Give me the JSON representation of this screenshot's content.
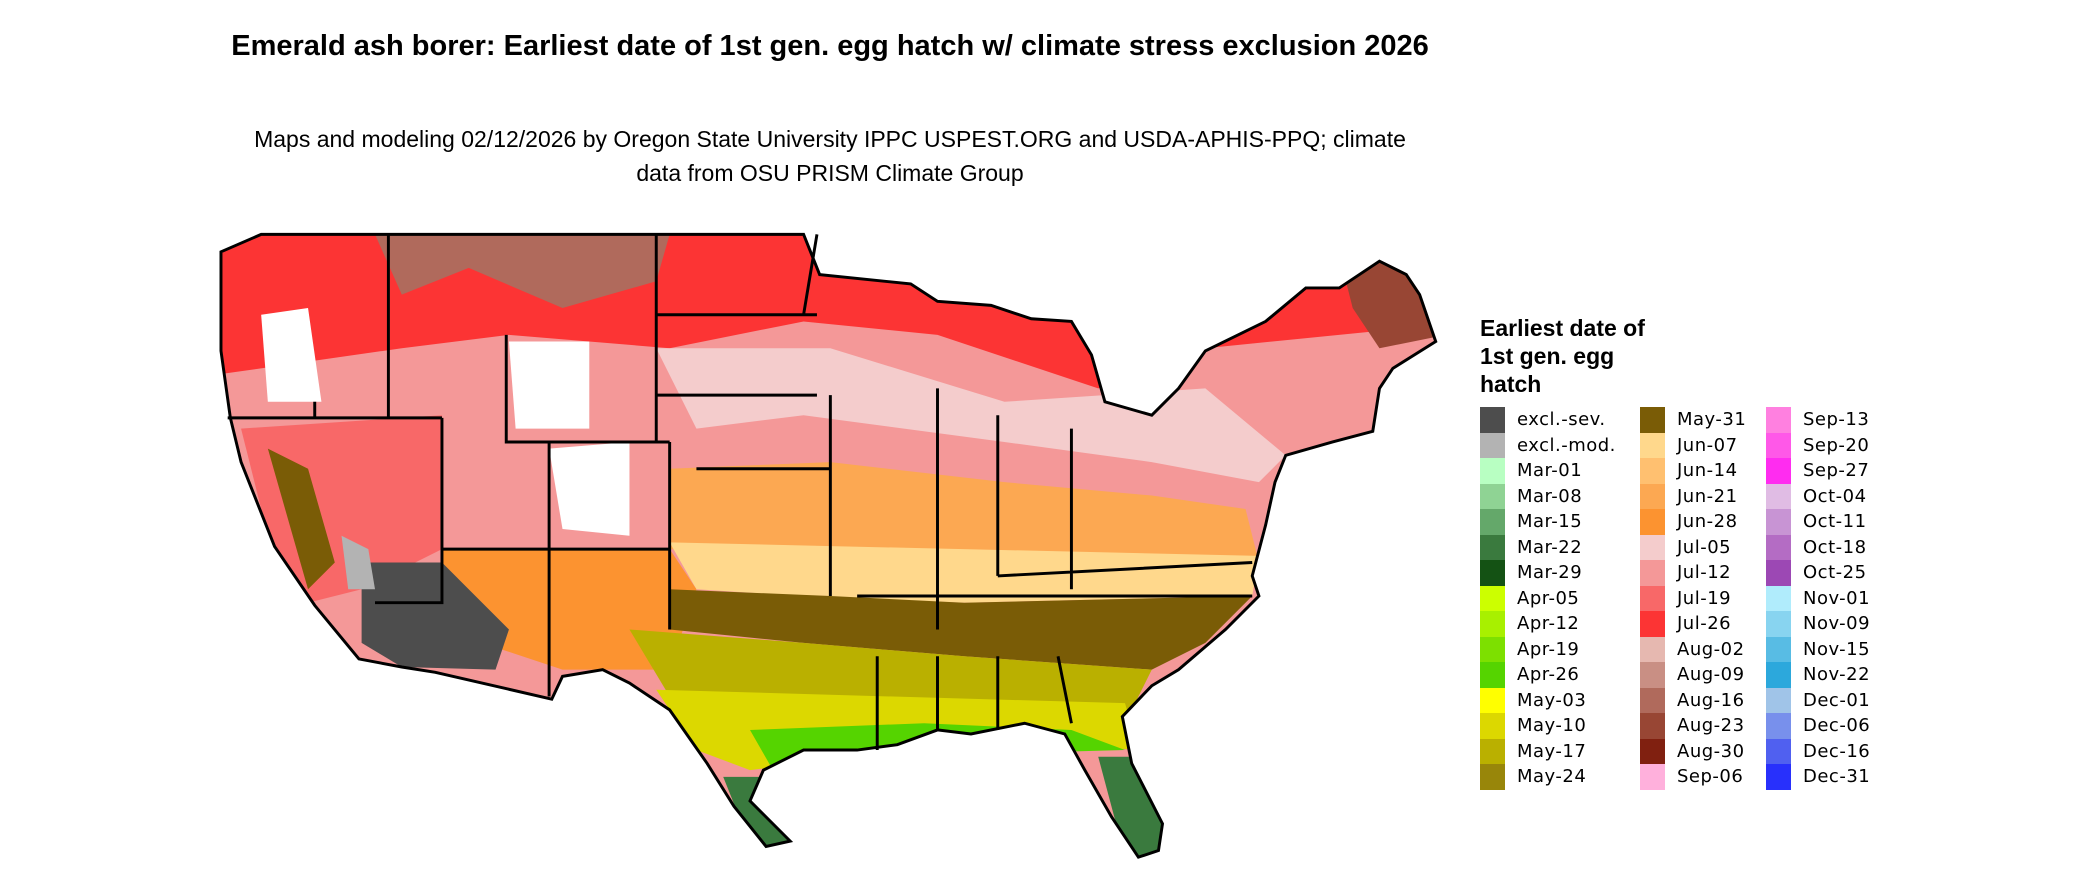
{
  "title": "Emerald ash borer: Earliest date of 1st gen. egg hatch w/ climate stress exclusion 2026",
  "subtitle": "Maps and modeling 02/12/2026 by Oregon State University IPPC USPEST.ORG and USDA-APHIS-PPQ; climate data from OSU PRISM Climate Group",
  "legend": {
    "title": "Earliest date of 1st gen. egg hatch",
    "columns": [
      [
        {
          "label": "excl.-sev.",
          "color": "#4d4d4d"
        },
        {
          "label": "excl.-mod.",
          "color": "#b3b3b3"
        },
        {
          "label": "Mar-01",
          "color": "#b8ffc2"
        },
        {
          "label": "Mar-08",
          "color": "#8fd394"
        },
        {
          "label": "Mar-15",
          "color": "#64a86a"
        },
        {
          "label": "Mar-22",
          "color": "#3a7a3e"
        },
        {
          "label": "Mar-29",
          "color": "#145214"
        },
        {
          "label": "Apr-05",
          "color": "#ccff00"
        },
        {
          "label": "Apr-12",
          "color": "#a8f000"
        },
        {
          "label": "Apr-19",
          "color": "#7de000"
        },
        {
          "label": "Apr-26",
          "color": "#55d400"
        },
        {
          "label": "May-03",
          "color": "#ffff00"
        },
        {
          "label": "May-10",
          "color": "#dcd800"
        },
        {
          "label": "May-17",
          "color": "#bab000"
        },
        {
          "label": "May-24",
          "color": "#98860a"
        }
      ],
      [
        {
          "label": "May-31",
          "color": "#7a5c06"
        },
        {
          "label": "Jun-07",
          "color": "#ffd88c"
        },
        {
          "label": "Jun-14",
          "color": "#ffc070"
        },
        {
          "label": "Jun-21",
          "color": "#fca852"
        },
        {
          "label": "Jun-28",
          "color": "#fc9330"
        },
        {
          "label": "Jul-05",
          "color": "#f4cccc"
        },
        {
          "label": "Jul-12",
          "color": "#f49898"
        },
        {
          "label": "Jul-19",
          "color": "#f86868"
        },
        {
          "label": "Jul-26",
          "color": "#fc3434"
        },
        {
          "label": "Aug-02",
          "color": "#e6b8b0"
        },
        {
          "label": "Aug-09",
          "color": "#c98f84"
        },
        {
          "label": "Aug-16",
          "color": "#b06a5c"
        },
        {
          "label": "Aug-23",
          "color": "#984634"
        },
        {
          "label": "Aug-30",
          "color": "#802010"
        },
        {
          "label": "Sep-06",
          "color": "#ffb0dc"
        }
      ],
      [
        {
          "label": "Sep-13",
          "color": "#ff80e0"
        },
        {
          "label": "Sep-20",
          "color": "#ff58e8"
        },
        {
          "label": "Sep-27",
          "color": "#ff2cf0"
        },
        {
          "label": "Oct-04",
          "color": "#e0bce4"
        },
        {
          "label": "Oct-11",
          "color": "#c894d4"
        },
        {
          "label": "Oct-18",
          "color": "#b46cc4"
        },
        {
          "label": "Oct-25",
          "color": "#9c48b4"
        },
        {
          "label": "Nov-01",
          "color": "#b0ecfc"
        },
        {
          "label": "Nov-09",
          "color": "#88d4f0"
        },
        {
          "label": "Nov-15",
          "color": "#58bce4"
        },
        {
          "label": "Nov-22",
          "color": "#2ca8dc"
        },
        {
          "label": "Dec-01",
          "color": "#a0c4e8"
        },
        {
          "label": "Dec-06",
          "color": "#7890ec"
        },
        {
          "label": "Dec-16",
          "color": "#5060f0"
        },
        {
          "label": "Dec-31",
          "color": "#2830fc"
        }
      ]
    ]
  }
}
